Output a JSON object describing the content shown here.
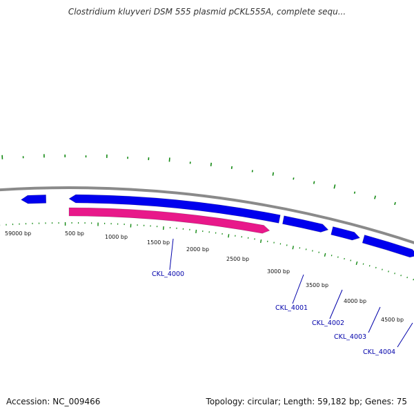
{
  "title": "Clostridium kluyveri DSM 555 plasmid pCKL555A, complete sequ...",
  "footer": {
    "accession": "Accession: NC_009466",
    "summary": "Topology: circular; Length: 59,182 bp; Genes: 75"
  },
  "colors": {
    "backbone": "#8a8a8a",
    "forward_gene": "#0000ee",
    "reverse_gene": "#e8188a",
    "ticks": "#118811",
    "gene_label": "#0000aa"
  },
  "tick_labels": [
    "59000 bp",
    "500 bp",
    "1000 bp",
    "1500 bp",
    "2000 bp",
    "2500 bp",
    "3000 bp",
    "3500 bp",
    "4000 bp",
    "4500 bp"
  ],
  "genes": [
    {
      "label": "",
      "strand": "forward"
    },
    {
      "label": "",
      "strand": "forward"
    },
    {
      "label": "CKL_4000",
      "strand": "reverse"
    },
    {
      "label": "CKL_4001",
      "strand": "forward"
    },
    {
      "label": "CKL_4002",
      "strand": "forward"
    },
    {
      "label": "CKL_4003",
      "strand": "forward"
    },
    {
      "label": "CKL_4004",
      "strand": "forward"
    }
  ]
}
